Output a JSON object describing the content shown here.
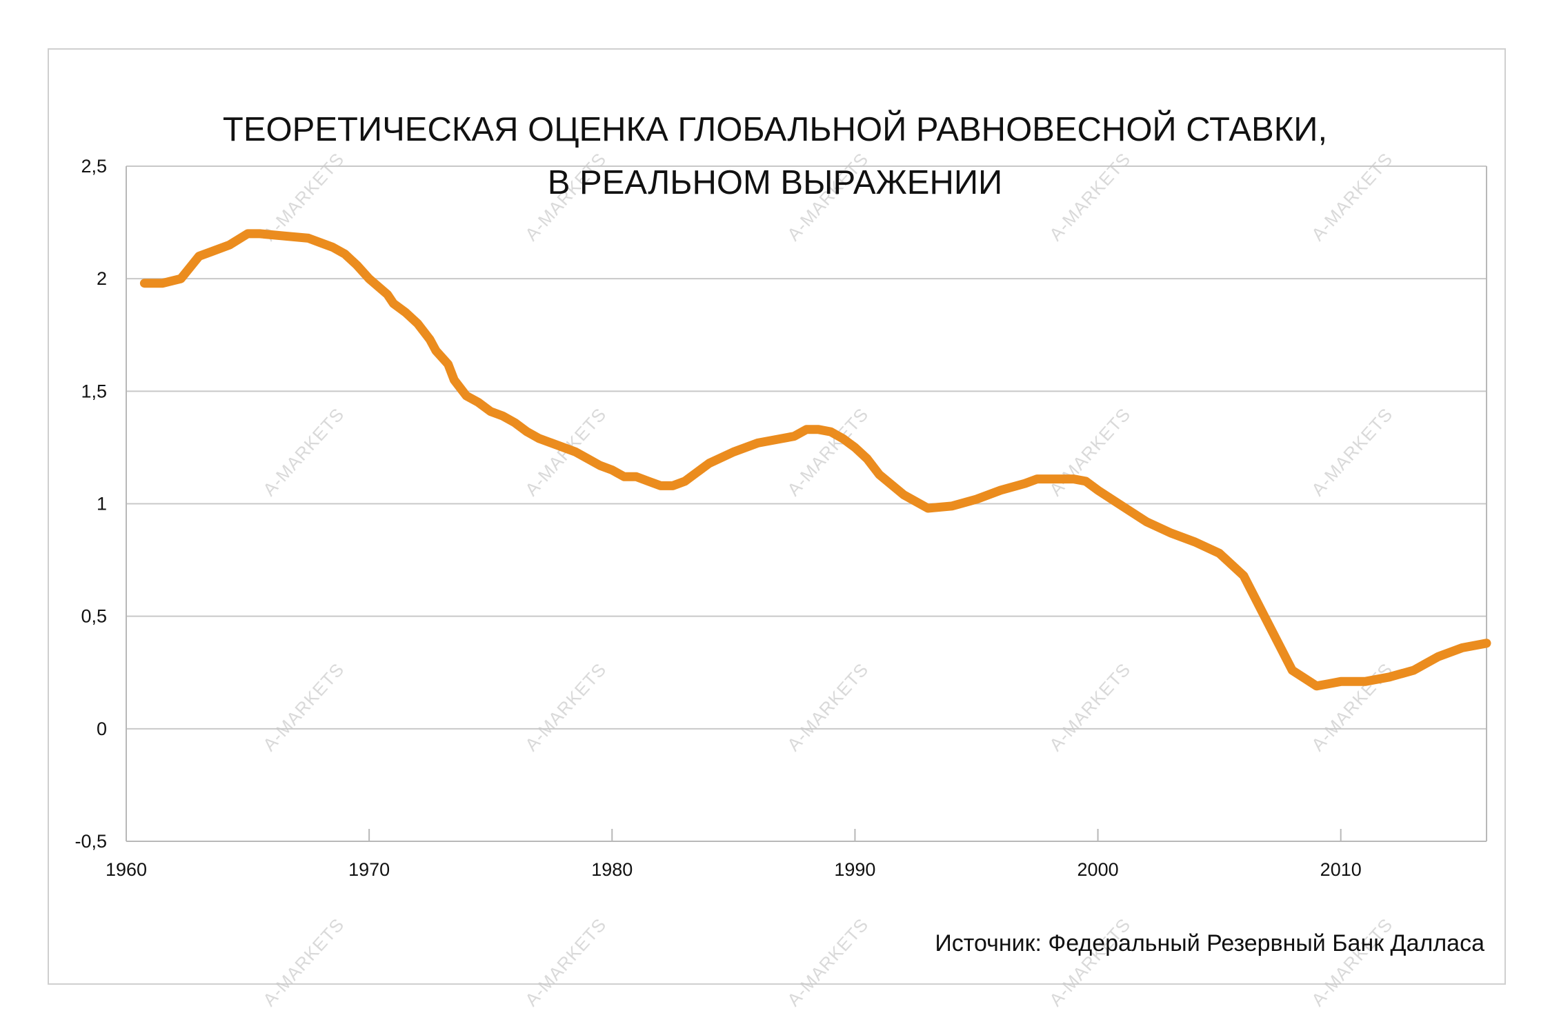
{
  "title": {
    "line1": "ТЕОРЕТИЧЕСКАЯ ОЦЕНКА ГЛОБАЛЬНОЙ РАВНОВЕСНОЙ СТАВКИ,",
    "line2": "В РЕАЛЬНОМ ВЫРАЖЕНИИ"
  },
  "source": "Источник: Федеральный Резервный Банк Далласа",
  "watermark": "A-MARKETS",
  "colors": {
    "line": "#EB8C1E",
    "grid": "#c8c8c8",
    "axis": "#b8b8b8",
    "text": "#111111",
    "frame": "#cfcfcf"
  },
  "chart_data": {
    "type": "line",
    "title": "ТЕОРЕТИЧЕСКАЯ ОЦЕНКА ГЛОБАЛЬНОЙ РАВНОВЕСНОЙ СТАВКИ, В РЕАЛЬНОМ ВЫРАЖЕНИИ",
    "xlabel": "",
    "ylabel": "",
    "xlim": [
      1960,
      2016
    ],
    "ylim": [
      -0.5,
      2.5
    ],
    "x_ticks": [
      1960,
      1970,
      1980,
      1990,
      2000,
      2010
    ],
    "x_tick_labels": [
      "1960",
      "1970",
      "1980",
      "1990",
      "2000",
      "2010"
    ],
    "y_ticks": [
      2.5,
      2,
      1.5,
      1,
      0.5,
      0,
      -0.5
    ],
    "y_tick_labels": [
      "2,5",
      "2",
      "1,5",
      "1",
      "0,5",
      "0",
      "-0,5"
    ],
    "grid": "horizontal",
    "legend": "none",
    "series": [
      {
        "x": [
          1960.75,
          1961.5,
          1962.25,
          1963.0,
          1963.5,
          1964.25,
          1965.0,
          1965.5,
          1966.5,
          1967.5,
          1968.0,
          1968.5,
          1969.0,
          1969.5,
          1970.0,
          1970.75,
          1971.0,
          1971.5,
          1972.0,
          1972.5,
          1972.75,
          1973.25,
          1973.5,
          1974.0,
          1974.5,
          1975.0,
          1975.5,
          1976.0,
          1976.5,
          1977.0,
          1977.5,
          1978.0,
          1978.5,
          1979.0,
          1979.5,
          1980.0,
          1980.5,
          1981.0,
          1981.5,
          1982.0,
          1982.5,
          1983.0,
          1983.5,
          1984.0,
          1985.0,
          1986.0,
          1987.0,
          1987.5,
          1988.0,
          1988.5,
          1989.0,
          1989.5,
          1990.0,
          1990.5,
          1991.0,
          1992.0,
          1993.0,
          1994.0,
          1995.0,
          1996.0,
          1997.0,
          1997.5,
          1998.0,
          1998.5,
          1999.0,
          1999.5,
          2000.0,
          2001.0,
          2002.0,
          2003.0,
          2004.0,
          2005.0,
          2006.0,
          2007.0,
          2008.0,
          2009.0,
          2009.5,
          2010.0,
          2011.0,
          2012.0,
          2013.0,
          2013.5,
          2014.0,
          2015.0,
          2016.0
        ],
        "y": [
          1.98,
          1.98,
          2.0,
          2.1,
          2.12,
          2.15,
          2.2,
          2.2,
          2.19,
          2.18,
          2.16,
          2.14,
          2.11,
          2.06,
          2.0,
          1.93,
          1.89,
          1.85,
          1.8,
          1.73,
          1.68,
          1.62,
          1.55,
          1.48,
          1.45,
          1.41,
          1.39,
          1.36,
          1.32,
          1.29,
          1.27,
          1.25,
          1.23,
          1.2,
          1.17,
          1.15,
          1.12,
          1.12,
          1.1,
          1.08,
          1.08,
          1.1,
          1.14,
          1.18,
          1.23,
          1.27,
          1.29,
          1.3,
          1.33,
          1.33,
          1.32,
          1.29,
          1.25,
          1.2,
          1.13,
          1.04,
          0.98,
          0.99,
          1.02,
          1.06,
          1.09,
          1.11,
          1.11,
          1.11,
          1.11,
          1.1,
          1.06,
          0.99,
          0.92,
          0.87,
          0.83,
          0.78,
          0.68,
          0.47,
          0.26,
          0.19,
          0.2,
          0.21,
          0.21,
          0.23,
          0.26,
          0.29,
          0.32,
          0.36,
          0.38
        ]
      }
    ]
  }
}
